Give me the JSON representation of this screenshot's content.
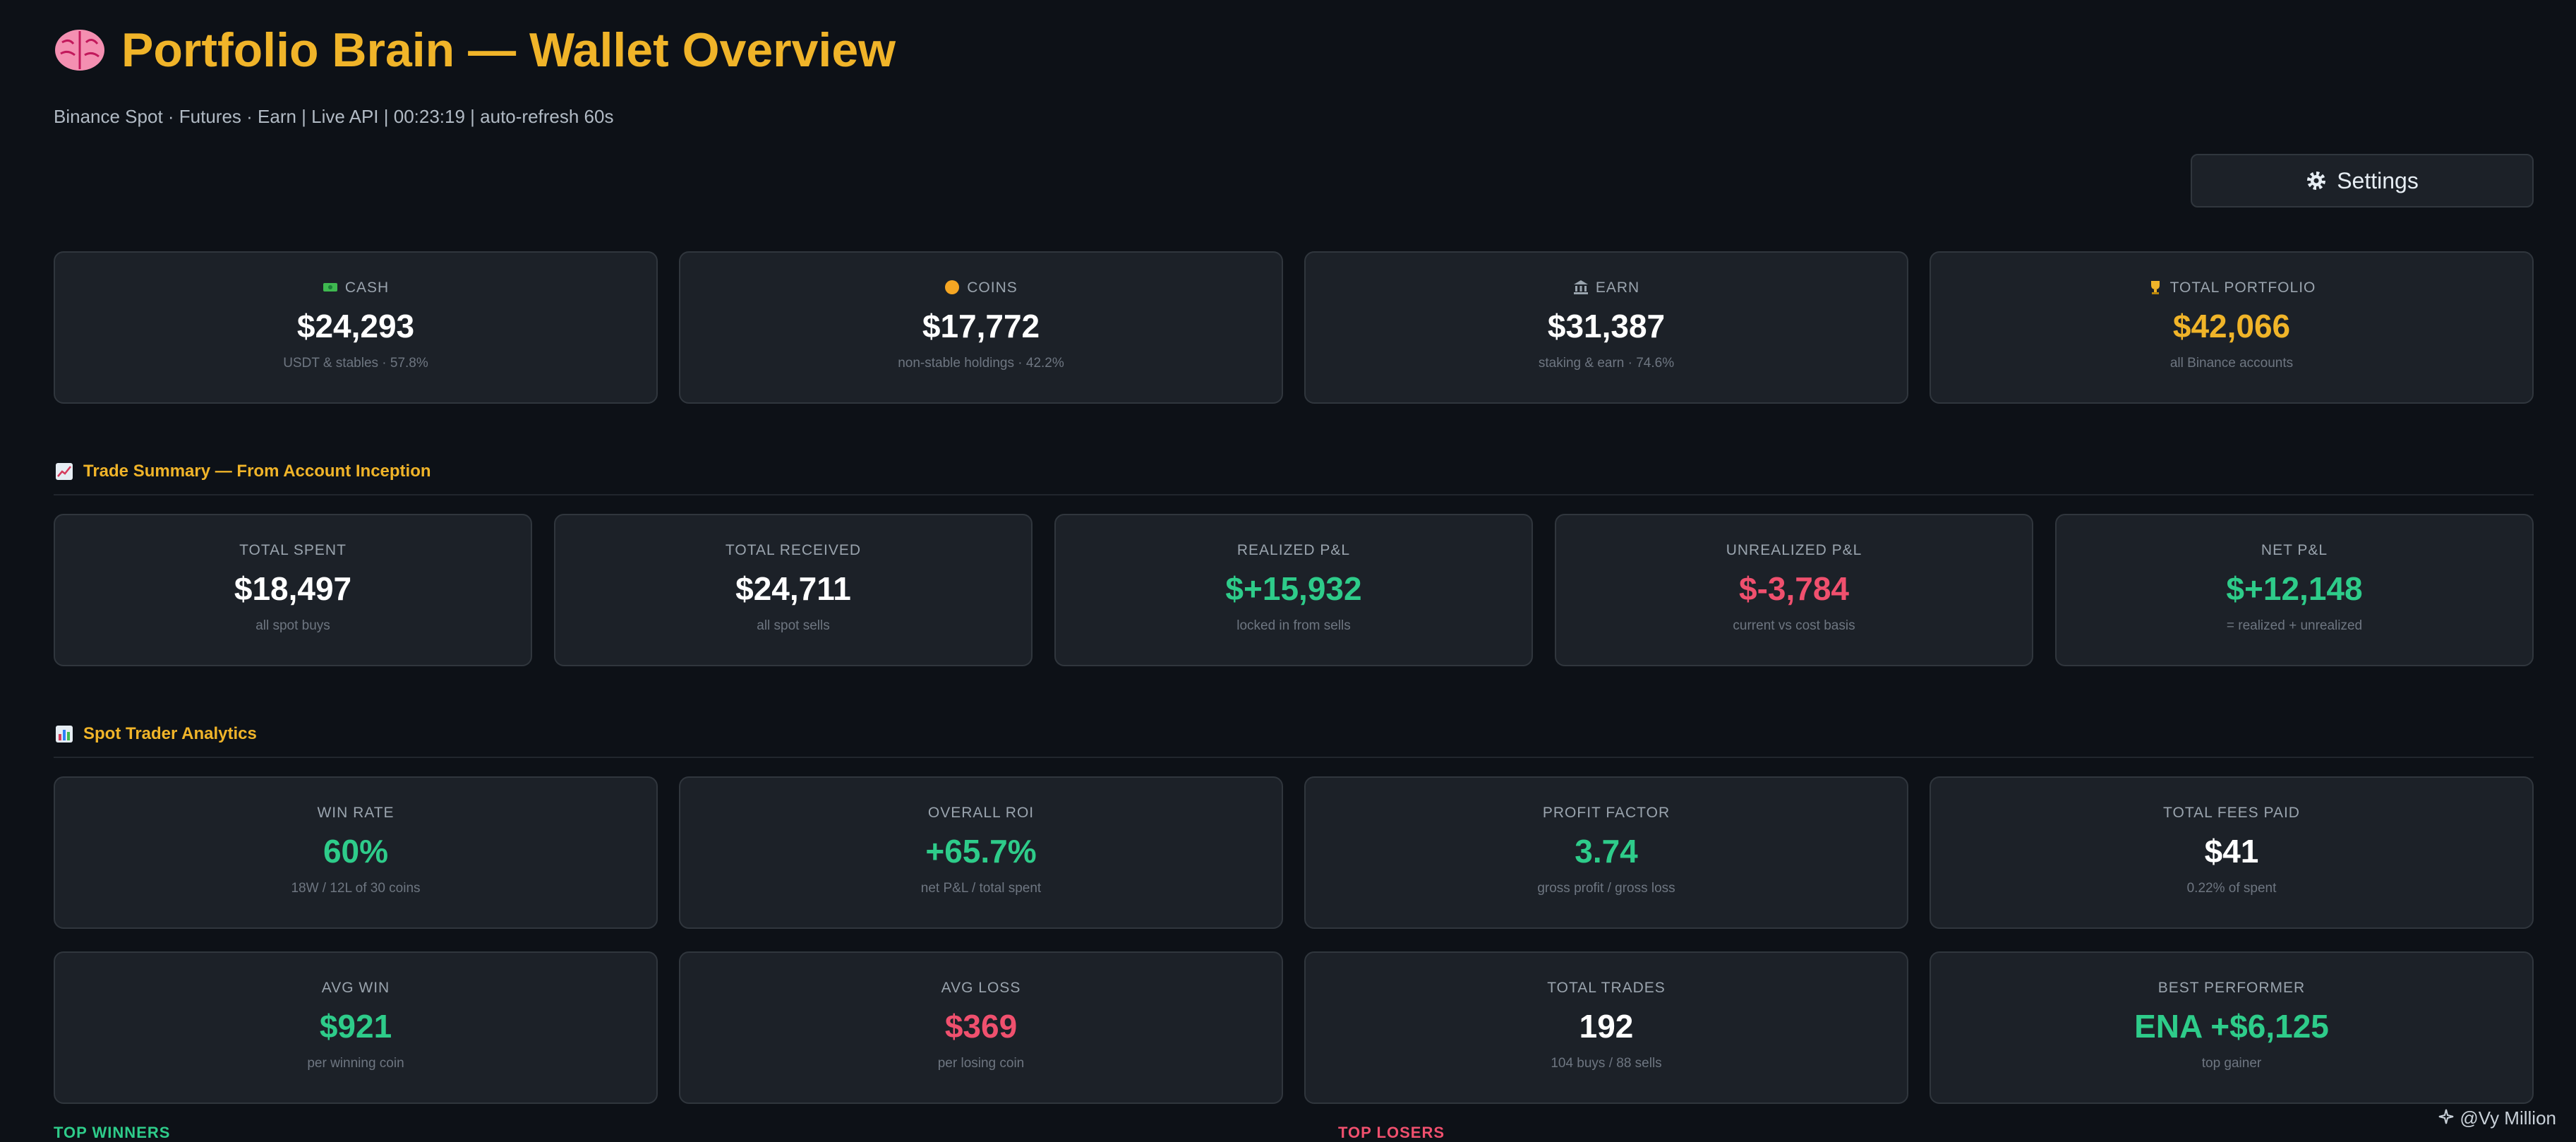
{
  "header": {
    "title": "Portfolio Brain — Wallet Overview",
    "subtitle": "Binance Spot · Futures · Earn | Live API | 00:23:19 | auto-refresh 60s"
  },
  "settings": {
    "label": "Settings"
  },
  "wallet": [
    {
      "label": "CASH",
      "value": "$24,293",
      "sub": "USDT & stables · 57.8%",
      "icon": "cash-icon"
    },
    {
      "label": "COINS",
      "value": "$17,772",
      "sub": "non-stable holdings · 42.2%",
      "icon": "coin-icon"
    },
    {
      "label": "EARN",
      "value": "$31,387",
      "sub": "staking & earn · 74.6%",
      "icon": "bank-icon"
    },
    {
      "label": "TOTAL PORTFOLIO",
      "value": "$42,066",
      "sub": "all Binance accounts",
      "icon": "trophy-icon"
    }
  ],
  "trade_summary": {
    "title": "Trade Summary — From Account Inception",
    "cards": [
      {
        "label": "TOTAL SPENT",
        "value": "$18,497",
        "sub": "all spot buys"
      },
      {
        "label": "TOTAL RECEIVED",
        "value": "$24,711",
        "sub": "all spot sells"
      },
      {
        "label": "REALIZED P&L",
        "value": "$+15,932",
        "sub": "locked in from sells"
      },
      {
        "label": "UNREALIZED P&L",
        "value": "$-3,784",
        "sub": "current vs cost basis"
      },
      {
        "label": "NET P&L",
        "value": "$+12,148",
        "sub": "= realized + unrealized"
      }
    ]
  },
  "analytics": {
    "title": "Spot Trader Analytics",
    "row1": [
      {
        "label": "WIN RATE",
        "value": "60%",
        "sub": "18W / 12L of 30 coins"
      },
      {
        "label": "OVERALL ROI",
        "value": "+65.7%",
        "sub": "net P&L / total spent"
      },
      {
        "label": "PROFIT FACTOR",
        "value": "3.74",
        "sub": "gross profit / gross loss"
      },
      {
        "label": "TOTAL FEES PAID",
        "value": "$41",
        "sub": "0.22% of spent"
      }
    ],
    "row2": [
      {
        "label": "AVG WIN",
        "value": "$921",
        "sub": "per winning coin"
      },
      {
        "label": "AVG LOSS",
        "value": "$369",
        "sub": "per losing coin"
      },
      {
        "label": "TOTAL TRADES",
        "value": "192",
        "sub": "104 buys / 88 sells"
      },
      {
        "label": "BEST PERFORMER",
        "value": "ENA +$6,125",
        "sub": "top gainer"
      }
    ]
  },
  "bottom": {
    "winners": "TOP WINNERS",
    "losers": "TOP LOSERS"
  },
  "watermark": "@Vy Million",
  "colors": {
    "accent": "#f0b429",
    "positive": "#2ecc8a",
    "negative": "#f0506e",
    "bg": "#0d1117",
    "card": "#1c2128"
  }
}
